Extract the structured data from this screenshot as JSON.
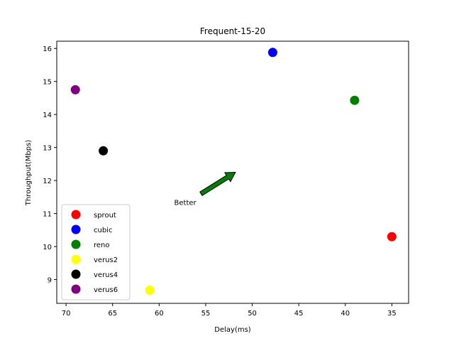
{
  "chart_data": {
    "type": "scatter",
    "title": "Frequent-15-20",
    "xlabel": "Delay(ms)",
    "ylabel": "Throughput(Mbps)",
    "x_inverted": true,
    "xlim": [
      71.0,
      33.2
    ],
    "ylim": [
      8.28,
      16.22
    ],
    "xticks": [
      70,
      65,
      60,
      55,
      50,
      45,
      40,
      35
    ],
    "yticks": [
      9,
      10,
      11,
      12,
      13,
      14,
      15,
      16
    ],
    "grid": false,
    "legend_position": "lower-left",
    "series": [
      {
        "name": "sprout",
        "color": "#ff0000",
        "x": 35.0,
        "y": 10.3
      },
      {
        "name": "cubic",
        "color": "#0000ff",
        "x": 47.8,
        "y": 15.88
      },
      {
        "name": "reno",
        "color": "#008000",
        "x": 39.0,
        "y": 14.43
      },
      {
        "name": "verus2",
        "color": "#ffff00",
        "x": 61.0,
        "y": 8.68
      },
      {
        "name": "verus4",
        "color": "#000000",
        "x": 66.0,
        "y": 12.9
      },
      {
        "name": "verus6",
        "color": "#800080",
        "x": 69.0,
        "y": 14.75
      }
    ],
    "annotation": {
      "text": "Better",
      "text_x": 57.2,
      "text_y": 11.35,
      "arrow_from_x": 55.5,
      "arrow_from_y": 11.6,
      "arrow_to_x": 51.8,
      "arrow_to_y": 12.25,
      "arrow_color": "#008000"
    }
  }
}
